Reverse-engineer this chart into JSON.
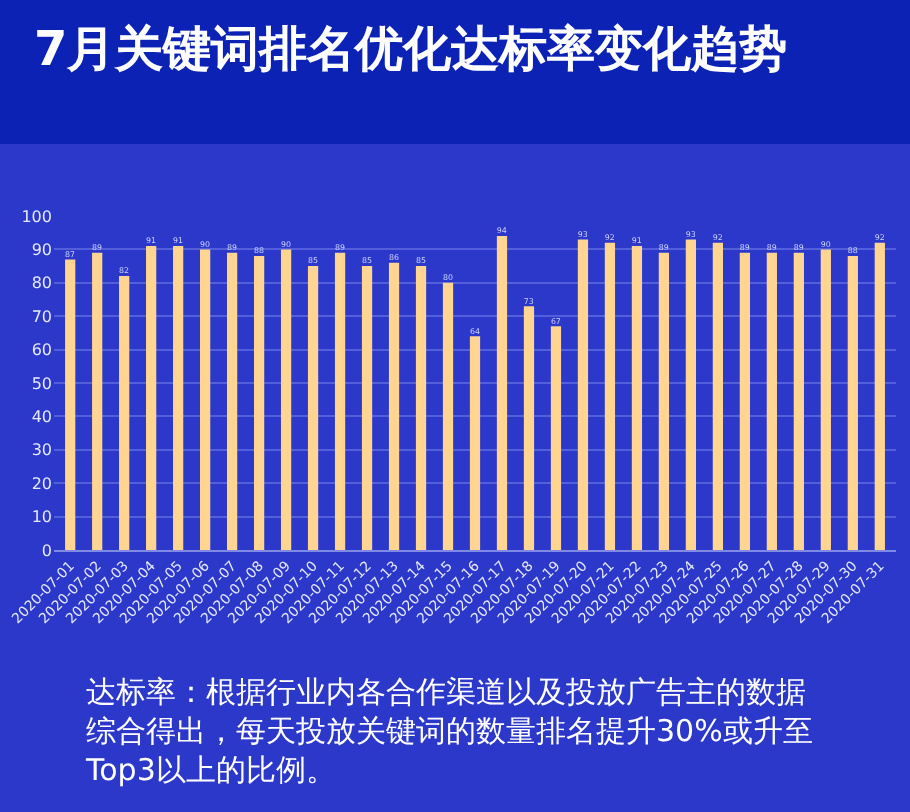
{
  "chart_data": {
    "type": "bar",
    "title": "7月关键词排名优化达标率变化趋势",
    "categories": [
      "2020-07-01",
      "2020-07-02",
      "2020-07-03",
      "2020-07-04",
      "2020-07-05",
      "2020-07-06",
      "2020-07-07",
      "2020-07-08",
      "2020-07-09",
      "2020-07-10",
      "2020-07-11",
      "2020-07-12",
      "2020-07-13",
      "2020-07-14",
      "2020-07-15",
      "2020-07-16",
      "2020-07-17",
      "2020-07-18",
      "2020-07-19",
      "2020-07-20",
      "2020-07-21",
      "2020-07-22",
      "2020-07-23",
      "2020-07-24",
      "2020-07-25",
      "2020-07-26",
      "2020-07-27",
      "2020-07-28",
      "2020-07-29",
      "2020-07-30",
      "2020-07-31"
    ],
    "values": [
      87,
      89,
      82,
      91,
      91,
      90,
      89,
      88,
      90,
      85,
      89,
      85,
      86,
      85,
      80,
      64,
      94,
      73,
      67,
      93,
      92,
      91,
      89,
      93,
      92,
      89,
      89,
      89,
      90,
      88,
      92
    ],
    "color": "#ffd591",
    "ylim": [
      0,
      100
    ],
    "yticks": [
      0,
      10,
      20,
      30,
      40,
      50,
      60,
      70,
      80,
      90,
      100
    ],
    "grid": "y",
    "data_labels": true,
    "annotations": [
      "达标率：根据行业内各合作渠道以及投放广告主的数据综合得出，每天投放关键词的数量排名提升30%或升至Top3以上的比例。"
    ]
  }
}
